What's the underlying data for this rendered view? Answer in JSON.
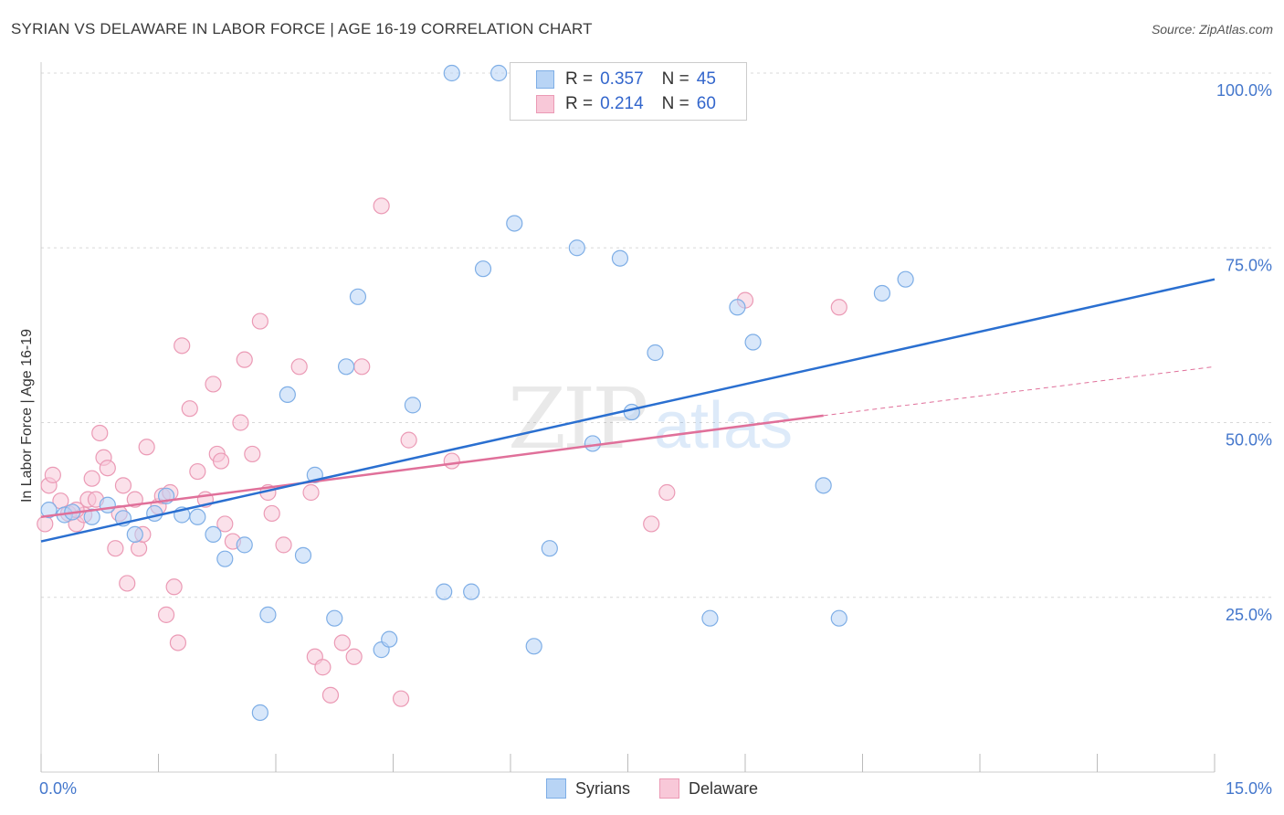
{
  "title": "SYRIAN VS DELAWARE IN LABOR FORCE | AGE 16-19 CORRELATION CHART",
  "source": "Source: ZipAtlas.com",
  "watermark": {
    "zip": "ZIP",
    "atlas": "atlas"
  },
  "legend": {
    "rows": [
      {
        "r_label": "R =",
        "r_value": "0.357",
        "n_label": "N =",
        "n_value": "45"
      },
      {
        "r_label": "R =",
        "r_value": "0.214",
        "n_label": "N =",
        "n_value": "60"
      }
    ]
  },
  "bottom_legend": {
    "syrians": "Syrians",
    "delaware": "Delaware"
  },
  "colors": {
    "syrians_fill": "#b8d4f5",
    "syrians_stroke": "#7eaee6",
    "syrians_line": "#2a6fd0",
    "delaware_fill": "#f8c8d8",
    "delaware_stroke": "#eb9ab5",
    "delaware_line": "#e0709a",
    "tick_text": "#4477cc"
  },
  "chart_data": {
    "type": "scatter",
    "title": "SYRIAN VS DELAWARE IN LABOR FORCE | AGE 16-19 CORRELATION CHART",
    "xlabel": "",
    "ylabel": "In Labor Force | Age 16-19",
    "xlim": [
      0,
      15
    ],
    "ylim": [
      0,
      100
    ],
    "x_tick_labels": [
      "0.0%",
      "15.0%"
    ],
    "y_ticks": [
      25,
      50,
      75,
      100
    ],
    "y_tick_labels": [
      "25.0%",
      "50.0%",
      "75.0%",
      "100.0%"
    ],
    "series": [
      {
        "name": "Syrians",
        "trend": {
          "x": [
            0,
            15
          ],
          "y": [
            33.0,
            70.5
          ]
        },
        "points": [
          [
            0.1,
            37.5
          ],
          [
            0.3,
            36.8
          ],
          [
            0.4,
            37.2
          ],
          [
            0.65,
            36.5
          ],
          [
            0.85,
            38.2
          ],
          [
            1.05,
            36.3
          ],
          [
            1.2,
            34.0
          ],
          [
            1.45,
            37.0
          ],
          [
            1.6,
            39.5
          ],
          [
            1.8,
            36.8
          ],
          [
            2.0,
            36.5
          ],
          [
            2.2,
            34.0
          ],
          [
            2.35,
            30.5
          ],
          [
            2.6,
            32.5
          ],
          [
            2.8,
            8.5
          ],
          [
            2.9,
            22.5
          ],
          [
            3.15,
            54.0
          ],
          [
            3.35,
            31.0
          ],
          [
            3.5,
            42.5
          ],
          [
            3.75,
            22.0
          ],
          [
            3.9,
            58.0
          ],
          [
            4.05,
            68.0
          ],
          [
            4.35,
            17.5
          ],
          [
            4.45,
            19.0
          ],
          [
            4.75,
            52.5
          ],
          [
            5.15,
            25.8
          ],
          [
            5.25,
            100.0
          ],
          [
            5.5,
            25.8
          ],
          [
            5.65,
            72.0
          ],
          [
            5.85,
            100.0
          ],
          [
            6.05,
            78.5
          ],
          [
            6.3,
            18.0
          ],
          [
            6.5,
            32.0
          ],
          [
            6.85,
            75.0
          ],
          [
            7.05,
            47.0
          ],
          [
            7.4,
            73.5
          ],
          [
            7.55,
            51.5
          ],
          [
            7.85,
            60.0
          ],
          [
            8.55,
            22.0
          ],
          [
            8.9,
            66.5
          ],
          [
            9.1,
            61.5
          ],
          [
            10.0,
            41.0
          ],
          [
            10.2,
            22.0
          ],
          [
            10.75,
            68.5
          ],
          [
            11.05,
            70.5
          ]
        ]
      },
      {
        "name": "Delaware",
        "trend": {
          "x": [
            0,
            10.0
          ],
          "y": [
            36.5,
            51.0
          ]
        },
        "trend_dashed": {
          "x": [
            10.0,
            15
          ],
          "y": [
            51.0,
            58.0
          ]
        },
        "points": [
          [
            0.05,
            35.5
          ],
          [
            0.1,
            41.0
          ],
          [
            0.15,
            42.5
          ],
          [
            0.25,
            38.8
          ],
          [
            0.35,
            37.0
          ],
          [
            0.45,
            35.5
          ],
          [
            0.55,
            36.8
          ],
          [
            0.6,
            39.0
          ],
          [
            0.65,
            42.0
          ],
          [
            0.7,
            39.0
          ],
          [
            0.75,
            48.5
          ],
          [
            0.8,
            45.0
          ],
          [
            0.85,
            43.5
          ],
          [
            0.95,
            32.0
          ],
          [
            1.0,
            37.0
          ],
          [
            1.05,
            41.0
          ],
          [
            1.1,
            27.0
          ],
          [
            1.2,
            39.0
          ],
          [
            1.25,
            32.0
          ],
          [
            1.3,
            34.0
          ],
          [
            1.35,
            46.5
          ],
          [
            1.5,
            38.0
          ],
          [
            1.55,
            39.5
          ],
          [
            1.6,
            22.5
          ],
          [
            1.65,
            40.0
          ],
          [
            1.7,
            26.5
          ],
          [
            1.75,
            18.5
          ],
          [
            1.8,
            61.0
          ],
          [
            1.9,
            52.0
          ],
          [
            2.0,
            43.0
          ],
          [
            2.1,
            39.0
          ],
          [
            2.2,
            55.5
          ],
          [
            2.25,
            45.5
          ],
          [
            2.3,
            44.5
          ],
          [
            2.35,
            35.5
          ],
          [
            2.45,
            33.0
          ],
          [
            2.55,
            50.0
          ],
          [
            2.6,
            59.0
          ],
          [
            2.7,
            45.5
          ],
          [
            2.8,
            64.5
          ],
          [
            2.9,
            40.0
          ],
          [
            2.95,
            37.0
          ],
          [
            3.1,
            32.5
          ],
          [
            3.3,
            58.0
          ],
          [
            3.45,
            40.0
          ],
          [
            3.5,
            16.5
          ],
          [
            3.6,
            15.0
          ],
          [
            3.7,
            11.0
          ],
          [
            3.85,
            18.5
          ],
          [
            4.0,
            16.5
          ],
          [
            4.1,
            58.0
          ],
          [
            4.35,
            81.0
          ],
          [
            4.6,
            10.5
          ],
          [
            4.7,
            47.5
          ],
          [
            5.25,
            44.5
          ],
          [
            7.8,
            35.5
          ],
          [
            8.0,
            40.0
          ],
          [
            9.0,
            67.5
          ],
          [
            10.2,
            66.5
          ],
          [
            0.45,
            37.5
          ]
        ]
      }
    ]
  }
}
